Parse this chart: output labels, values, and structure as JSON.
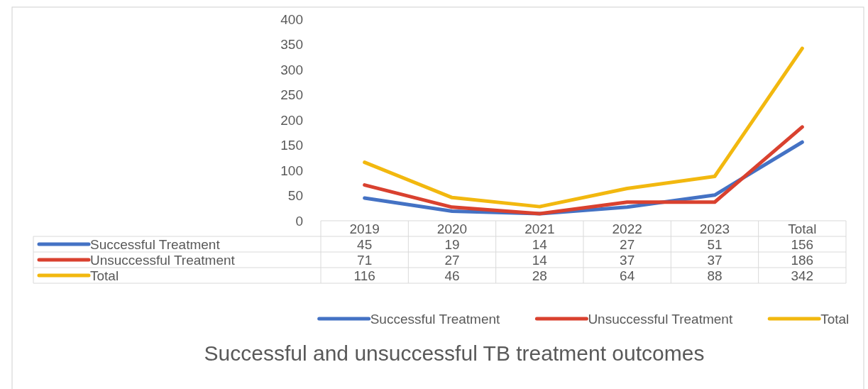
{
  "chart_data": {
    "type": "line",
    "title": "Successful and unsuccessful TB treatment outcomes",
    "categories": [
      "2019",
      "2020",
      "2021",
      "2022",
      "2023",
      "Total"
    ],
    "series": [
      {
        "name": "Successful Treatment",
        "color": "#4472c4",
        "values": [
          45,
          19,
          14,
          27,
          51,
          156
        ]
      },
      {
        "name": "Unsuccessful Treatment",
        "color": "#d9412f",
        "values": [
          71,
          27,
          14,
          37,
          37,
          186
        ]
      },
      {
        "name": "Total",
        "color": "#f2b80f",
        "values": [
          116,
          46,
          28,
          64,
          88,
          342
        ]
      }
    ],
    "ylim": [
      0,
      400
    ],
    "yticks": [
      0,
      50,
      100,
      150,
      200,
      250,
      300,
      350,
      400
    ],
    "grid": false,
    "legend": "bottom",
    "data_labels": true,
    "marker": "none",
    "line_style": "solid"
  }
}
